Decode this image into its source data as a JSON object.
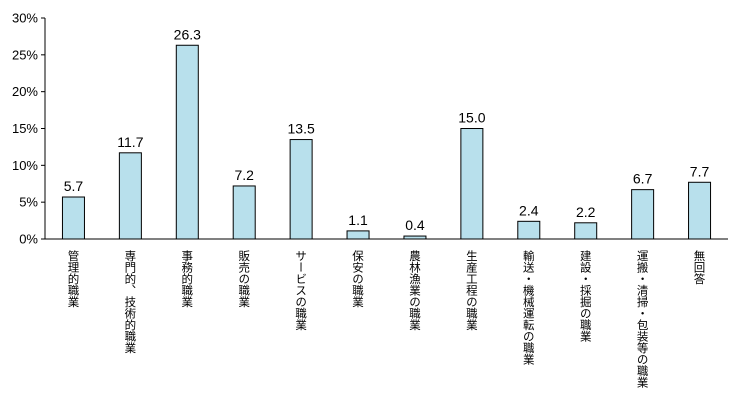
{
  "chart_data": {
    "type": "bar",
    "categories": [
      "管理的職業",
      "専門的、技術的職業",
      "事務的職業",
      "販売の職業",
      "サービスの職業",
      "保安の職業",
      "農林漁業の職業",
      "生産工程の職業",
      "輸送・機械運転の職業",
      "建設・採掘の職業",
      "運搬・清掃・包装等の職業",
      "無回答"
    ],
    "values": [
      5.7,
      11.7,
      26.3,
      7.2,
      13.5,
      1.1,
      0.4,
      15.0,
      2.4,
      2.2,
      6.7,
      7.7
    ],
    "value_labels": [
      "5.7",
      "11.7",
      "26.3",
      "7.2",
      "13.5",
      "1.1",
      "0.4",
      "15.0",
      "2.4",
      "2.2",
      "6.7",
      "7.7"
    ],
    "yticks": [
      0,
      5,
      10,
      15,
      20,
      25,
      30
    ],
    "ytick_labels": [
      "0%",
      "5%",
      "10%",
      "15%",
      "20%",
      "25%",
      "30%"
    ],
    "ylim": [
      0,
      30
    ],
    "title": "",
    "xlabel": "",
    "ylabel": "",
    "grid": false,
    "bar_color": "#b8e0ec",
    "bar_stroke": "#000000"
  }
}
